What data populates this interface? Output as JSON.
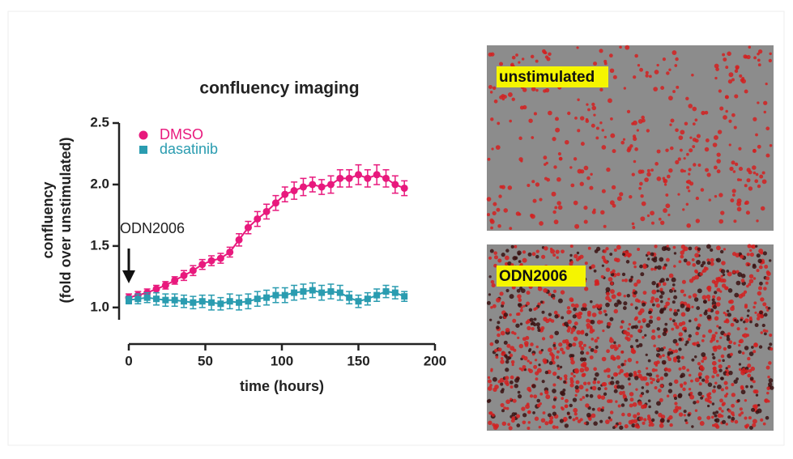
{
  "chart_data": {
    "type": "line",
    "title": "confluency imaging",
    "xlabel": "time (hours)",
    "ylabel": [
      "confluency",
      "(fold over unstimulated)"
    ],
    "annotation": "ODN2006",
    "xlim": [
      0,
      200
    ],
    "xticks": [
      0,
      50,
      100,
      150,
      200
    ],
    "ylim": [
      0.9,
      2.5
    ],
    "yticks": [
      {
        "value": 1,
        "label": "1.0"
      },
      1.5,
      {
        "value": 2,
        "label": "2.0"
      },
      2.5
    ],
    "x": [
      0,
      6,
      12,
      18,
      24,
      30,
      36,
      42,
      48,
      54,
      60,
      66,
      72,
      78,
      84,
      90,
      96,
      102,
      108,
      114,
      120,
      126,
      132,
      138,
      144,
      150,
      156,
      162,
      168,
      174,
      180
    ],
    "series": [
      {
        "name": "DMSO",
        "color": "#e8197d",
        "marker": "circle",
        "values": [
          1.08,
          1.1,
          1.12,
          1.15,
          1.18,
          1.22,
          1.26,
          1.3,
          1.35,
          1.38,
          1.4,
          1.45,
          1.55,
          1.65,
          1.72,
          1.78,
          1.85,
          1.92,
          1.95,
          1.98,
          2.0,
          1.98,
          2.0,
          2.05,
          2.05,
          2.08,
          2.05,
          2.08,
          2.05,
          2.0,
          1.97
        ],
        "errors": [
          0.03,
          0.03,
          0.03,
          0.03,
          0.03,
          0.03,
          0.04,
          0.04,
          0.04,
          0.04,
          0.04,
          0.04,
          0.05,
          0.05,
          0.06,
          0.06,
          0.06,
          0.06,
          0.07,
          0.07,
          0.06,
          0.06,
          0.07,
          0.07,
          0.07,
          0.08,
          0.07,
          0.08,
          0.07,
          0.07,
          0.06
        ]
      },
      {
        "name": "dasatinib",
        "color": "#2a9cb0",
        "marker": "square",
        "values": [
          1.06,
          1.07,
          1.08,
          1.07,
          1.06,
          1.06,
          1.05,
          1.04,
          1.05,
          1.04,
          1.03,
          1.05,
          1.04,
          1.05,
          1.07,
          1.08,
          1.1,
          1.1,
          1.12,
          1.13,
          1.14,
          1.12,
          1.13,
          1.12,
          1.08,
          1.05,
          1.07,
          1.1,
          1.13,
          1.12,
          1.09
        ],
        "errors": [
          0.03,
          0.04,
          0.04,
          0.05,
          0.05,
          0.05,
          0.05,
          0.05,
          0.05,
          0.06,
          0.05,
          0.06,
          0.06,
          0.06,
          0.06,
          0.06,
          0.06,
          0.06,
          0.06,
          0.06,
          0.06,
          0.06,
          0.06,
          0.06,
          0.05,
          0.05,
          0.05,
          0.05,
          0.05,
          0.05,
          0.04
        ]
      }
    ]
  },
  "images": [
    {
      "label": "unstimulated"
    },
    {
      "label": "ODN2006"
    }
  ]
}
